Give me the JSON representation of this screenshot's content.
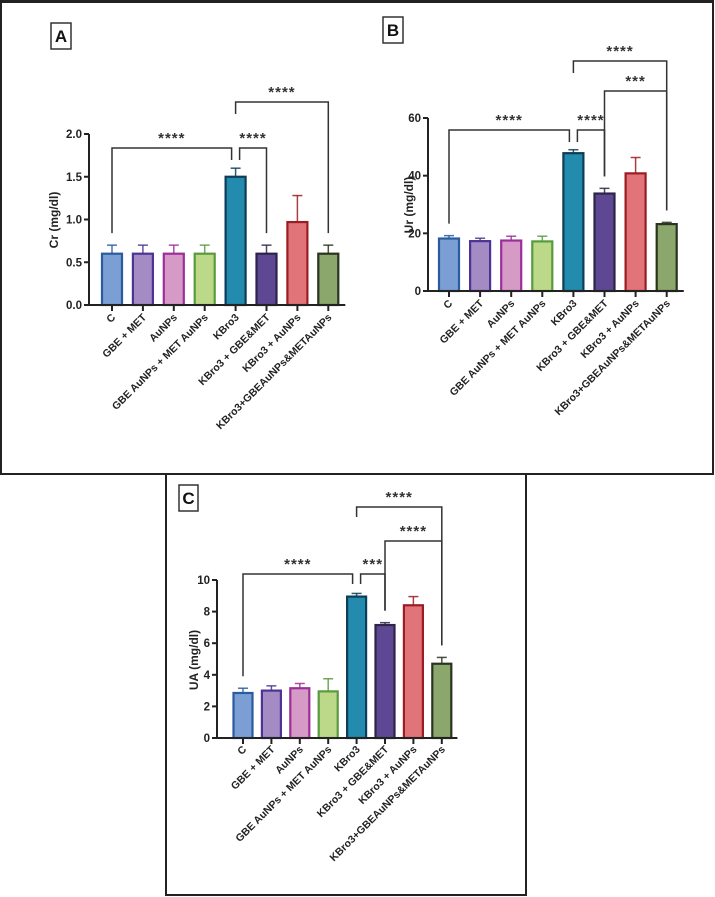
{
  "figure": {
    "frames": [
      "top-row",
      "panel-c"
    ]
  },
  "chart_data": [
    {
      "panel": "A",
      "type": "bar",
      "title": "",
      "xlabel": "",
      "ylabel": "Cr (mg/dl)",
      "ylim": [
        0,
        2.0
      ],
      "yticks": [
        0.0,
        0.5,
        1.0,
        1.5,
        2.0
      ],
      "ytick_labels": [
        "0.0",
        "0.5",
        "1.0",
        "1.5",
        "2.0"
      ],
      "categories": [
        "C",
        "GBE + MET",
        "AuNPs",
        "GBE AuNPs + MET AuNPs",
        "KBro3",
        "KBro3 + GBE&MET",
        "KBro3 + AuNPs",
        "KBro3+GBEAuNPs&METAuNPs"
      ],
      "values": [
        0.6,
        0.6,
        0.6,
        0.6,
        1.5,
        0.6,
        0.97,
        0.6
      ],
      "errors": [
        0.1,
        0.1,
        0.1,
        0.1,
        0.1,
        0.1,
        0.31,
        0.1
      ],
      "grid": false,
      "legend": "none",
      "significance": [
        {
          "from": 0,
          "to": 4,
          "label": "****"
        },
        {
          "from": 4,
          "to": 5,
          "label": "****"
        },
        {
          "from": 4,
          "to": 7,
          "label": "****"
        }
      ]
    },
    {
      "panel": "B",
      "type": "bar",
      "title": "",
      "xlabel": "",
      "ylabel": "Ur (mg/dl)",
      "ylim": [
        0,
        60
      ],
      "yticks": [
        0,
        20,
        40,
        60
      ],
      "ytick_labels": [
        "0",
        "20",
        "40",
        "60"
      ],
      "categories": [
        "C",
        "GBE + MET",
        "AuNPs",
        "GBE AuNPs + MET AuNPs",
        "KBro3",
        "KBro3 + GBE&MET",
        "KBro3 + AuNPs",
        "KBro3+GBEAuNPs&METAuNPs"
      ],
      "values": [
        18.2,
        17.3,
        17.5,
        17.2,
        47.8,
        33.8,
        40.8,
        23.2
      ],
      "errors": [
        1.0,
        1.0,
        1.5,
        1.8,
        1.2,
        1.8,
        5.5,
        0.6
      ],
      "grid": false,
      "legend": "none",
      "significance": [
        {
          "from": 0,
          "to": 4,
          "label": "****"
        },
        {
          "from": 4,
          "to": 5,
          "label": "****"
        },
        {
          "from": 5,
          "to": 7,
          "label": "***"
        },
        {
          "from": 4,
          "to": 7,
          "label": "****"
        }
      ]
    },
    {
      "panel": "C",
      "type": "bar",
      "title": "",
      "xlabel": "",
      "ylabel": "UA (mg/dl)",
      "ylim": [
        0,
        10
      ],
      "yticks": [
        0,
        2,
        4,
        6,
        8,
        10
      ],
      "ytick_labels": [
        "0",
        "2",
        "4",
        "6",
        "8",
        "10"
      ],
      "categories": [
        "C",
        "GBE + MET",
        "AuNPs",
        "GBE AuNPs + MET AuNPs",
        "KBro3",
        "KBro3 + GBE&MET",
        "KBro3 + AuNPs",
        "KBro3+GBEAuNPs&METAuNPs"
      ],
      "values": [
        2.85,
        3.0,
        3.15,
        2.95,
        8.95,
        7.15,
        8.4,
        4.7
      ],
      "errors": [
        0.3,
        0.3,
        0.3,
        0.8,
        0.2,
        0.15,
        0.55,
        0.4
      ],
      "grid": false,
      "legend": "none",
      "significance": [
        {
          "from": 0,
          "to": 4,
          "label": "****"
        },
        {
          "from": 4,
          "to": 5,
          "label": "***"
        },
        {
          "from": 5,
          "to": 7,
          "label": "****"
        },
        {
          "from": 4,
          "to": 7,
          "label": "****"
        }
      ]
    }
  ],
  "panels": [
    {
      "label": "A"
    },
    {
      "label": "B"
    },
    {
      "label": "C"
    }
  ],
  "colors": {
    "fills": [
      "#7b9fd4",
      "#a48bc4",
      "#d59ac6",
      "#bcd98a",
      "#238bad",
      "#5f4893",
      "#e07479",
      "#8ba76c"
    ],
    "strokes": [
      "#2a5b9e",
      "#4b3495",
      "#9b2f97",
      "#5a9a3e",
      "#0d3d57",
      "#2d2548",
      "#9b1d22",
      "#2a3320"
    ],
    "axis": "#222222",
    "bracket": "#333333"
  }
}
